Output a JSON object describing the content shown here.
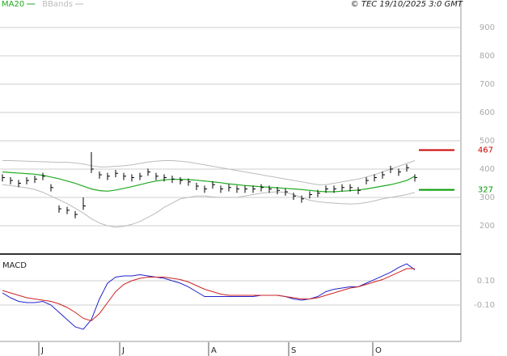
{
  "chart_data": [
    {
      "type": "ohlc",
      "source": "© TEC 19/10/2025 3:0 GMT",
      "xlim": [
        -0.3,
        56.7
      ],
      "xticks": [
        {
          "value": 4.5,
          "label": "J"
        },
        {
          "value": 14.5,
          "label": "J"
        },
        {
          "value": 25.5,
          "label": "A"
        },
        {
          "value": 35.4,
          "label": "S"
        },
        {
          "value": 45.8,
          "label": "O"
        }
      ],
      "ylim": [
        103,
        997
      ],
      "yticks": [
        200,
        300,
        400,
        500,
        600,
        700,
        800,
        900
      ],
      "grid": true,
      "bar_color": "#000000",
      "high": [
        382,
        372,
        362,
        372,
        377,
        387,
        347,
        272,
        267,
        252,
        300,
        460,
        392,
        387,
        397,
        387,
        382,
        387,
        402,
        387,
        382,
        377,
        372,
        367,
        352,
        342,
        357,
        342,
        347,
        342,
        342,
        342,
        347,
        342,
        337,
        332,
        317,
        307,
        322,
        327,
        342,
        342,
        347,
        347,
        337,
        372,
        382,
        392,
        412,
        402,
        417,
        382
      ],
      "low": [
        356,
        346,
        336,
        346,
        351,
        361,
        321,
        246,
        241,
        226,
        256,
        386,
        366,
        361,
        371,
        361,
        356,
        361,
        376,
        361,
        356,
        351,
        346,
        341,
        326,
        316,
        331,
        316,
        321,
        316,
        316,
        316,
        321,
        316,
        311,
        306,
        291,
        281,
        296,
        301,
        316,
        316,
        321,
        321,
        311,
        346,
        356,
        366,
        386,
        376,
        391,
        356
      ],
      "close": [
        370,
        360,
        350,
        360,
        365,
        375,
        335,
        260,
        255,
        240,
        270,
        400,
        380,
        375,
        385,
        375,
        370,
        375,
        390,
        375,
        370,
        365,
        360,
        355,
        340,
        330,
        345,
        330,
        335,
        330,
        330,
        330,
        335,
        330,
        325,
        320,
        305,
        295,
        310,
        315,
        330,
        330,
        335,
        335,
        325,
        360,
        370,
        380,
        400,
        390,
        405,
        370
      ],
      "series": [
        {
          "name": "MA20",
          "color": "#22aa22",
          "values": [
            390,
            388,
            386,
            384,
            382,
            378,
            372,
            366,
            358,
            350,
            340,
            330,
            324,
            322,
            326,
            332,
            338,
            345,
            352,
            358,
            362,
            364,
            364,
            363,
            361,
            358,
            355,
            352,
            348,
            345,
            342,
            340,
            338,
            336,
            334,
            332,
            330,
            328,
            325,
            322,
            320,
            320,
            322,
            324,
            326,
            330,
            335,
            340,
            345,
            352,
            360,
            375
          ]
        },
        {
          "name": "BBands",
          "color": "#bbbbbb",
          "upper": [
            430,
            430,
            429,
            428,
            427,
            426,
            425,
            424,
            424,
            422,
            418,
            412,
            408,
            408,
            410,
            412,
            415,
            420,
            425,
            428,
            430,
            430,
            428,
            425,
            420,
            415,
            410,
            405,
            400,
            395,
            390,
            385,
            380,
            375,
            370,
            365,
            360,
            355,
            350,
            345,
            345,
            350,
            355,
            360,
            365,
            372,
            380,
            390,
            400,
            410,
            420,
            430
          ],
          "lower": [
            345,
            342,
            338,
            334,
            328,
            318,
            305,
            292,
            278,
            262,
            245,
            225,
            210,
            200,
            195,
            198,
            205,
            215,
            230,
            245,
            265,
            280,
            295,
            300,
            305,
            305,
            302,
            300,
            300,
            300,
            305,
            310,
            315,
            318,
            320,
            318,
            310,
            300,
            290,
            285,
            282,
            280,
            278,
            277,
            278,
            282,
            288,
            295,
            300,
            305,
            310,
            318
          ]
        }
      ],
      "levels": [
        {
          "value": 467,
          "color": "#cc0000"
        },
        {
          "value": 327,
          "color": "#009900"
        }
      ]
    },
    {
      "type": "line",
      "title": "MACD",
      "xlim": [
        -0.3,
        56.7
      ],
      "ylim": [
        -0.387,
        0.307
      ],
      "yticks": [
        {
          "value": 0.1,
          "label": "0.10"
        },
        {
          "value": -0.1,
          "label": "-0.10"
        }
      ],
      "grid": true,
      "series": [
        {
          "color": "#2222cc",
          "values": [
            0.0,
            -0.04,
            -0.07,
            -0.08,
            -0.08,
            -0.07,
            -0.1,
            -0.16,
            -0.22,
            -0.28,
            -0.3,
            -0.22,
            -0.05,
            0.08,
            0.13,
            0.14,
            0.14,
            0.15,
            0.14,
            0.13,
            0.12,
            0.1,
            0.08,
            0.05,
            0.01,
            -0.03,
            -0.03,
            -0.03,
            -0.03,
            -0.03,
            -0.03,
            -0.03,
            -0.02,
            -0.02,
            -0.02,
            -0.03,
            -0.05,
            -0.06,
            -0.05,
            -0.03,
            0.01,
            0.03,
            0.04,
            0.05,
            0.05,
            0.08,
            0.11,
            0.14,
            0.17,
            0.21,
            0.24,
            0.19
          ]
        },
        {
          "color": "#cc2222",
          "values": [
            0.02,
            0.0,
            -0.02,
            -0.04,
            -0.05,
            -0.06,
            -0.07,
            -0.09,
            -0.12,
            -0.16,
            -0.21,
            -0.23,
            -0.17,
            -0.08,
            0.01,
            0.07,
            0.1,
            0.12,
            0.13,
            0.13,
            0.13,
            0.12,
            0.11,
            0.09,
            0.06,
            0.03,
            0.01,
            -0.01,
            -0.02,
            -0.02,
            -0.02,
            -0.02,
            -0.02,
            -0.02,
            -0.02,
            -0.03,
            -0.04,
            -0.05,
            -0.05,
            -0.04,
            -0.02,
            0.0,
            0.02,
            0.04,
            0.05,
            0.07,
            0.09,
            0.11,
            0.14,
            0.17,
            0.2,
            0.2
          ]
        }
      ]
    }
  ]
}
